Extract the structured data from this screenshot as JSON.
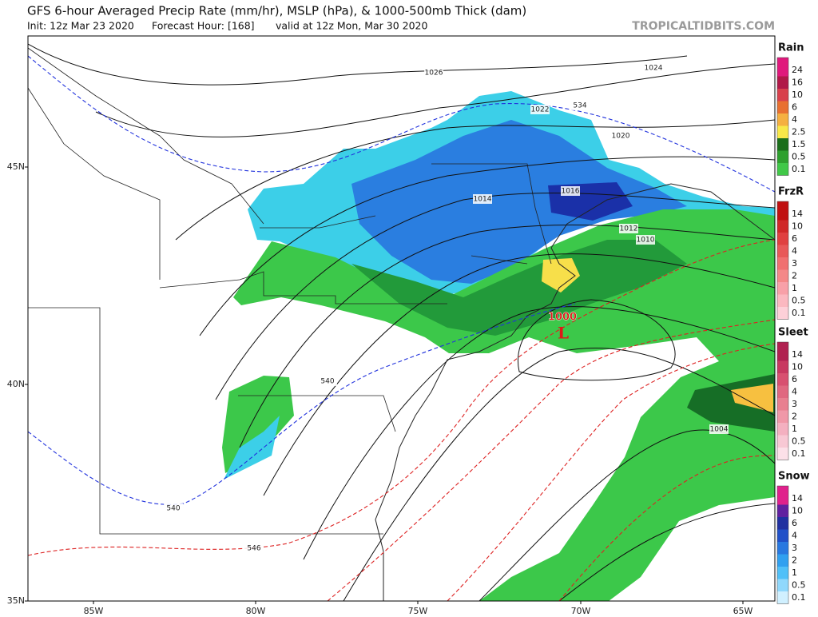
{
  "header": {
    "title": "GFS 6-hour Averaged Precip Rate (mm/hr), MSLP (hPa), & 1000-500mb Thick (dam)",
    "init": "Init: 12z Mar 23 2020",
    "forecast_hour": "Forecast Hour: [168]",
    "valid": "valid at 12z Mon, Mar 30 2020",
    "watermark": "TROPICALTIDBITS.COM"
  },
  "legends": [
    {
      "title": "Rain",
      "labels": [
        "24",
        "16",
        "10",
        "6",
        "4",
        "2.5",
        "1.5",
        "0.5",
        "0.1"
      ]
    },
    {
      "title": "FrzR",
      "labels": [
        "14",
        "10",
        "6",
        "4",
        "3",
        "2",
        "1",
        "0.5",
        "0.1"
      ]
    },
    {
      "title": "Sleet",
      "labels": [
        "14",
        "10",
        "6",
        "4",
        "3",
        "2",
        "1",
        "0.5",
        "0.1"
      ]
    },
    {
      "title": "Snow",
      "labels": [
        "14",
        "10",
        "6",
        "4",
        "3",
        "2",
        "1",
        "0.5",
        "0.1"
      ]
    }
  ],
  "axes": {
    "latitude_labels": [
      "45N",
      "40N",
      "35N"
    ],
    "longitude_labels": [
      "85W",
      "80W",
      "75W",
      "70W",
      "65W"
    ]
  },
  "contour_labels": [
    "1026",
    "1024",
    "1022",
    "534",
    "1020",
    "1016",
    "1014",
    "1012",
    "1010",
    "540",
    "540",
    "546",
    "1004"
  ],
  "low_center": {
    "pressure": "1000",
    "symbol": "L"
  }
}
